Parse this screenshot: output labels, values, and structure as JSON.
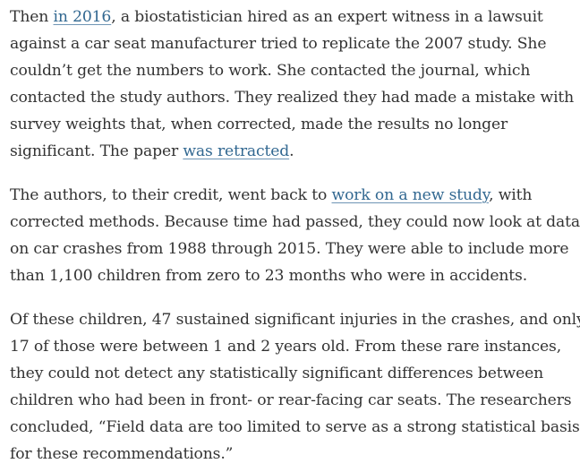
{
  "article": {
    "paragraphs": [
      {
        "lines": [
          {
            "pre": "Then ",
            "link": "in 2016",
            "post": ", a biostatistician hired as an expert witness in a lawsuit"
          },
          {
            "text": "against a car seat manufacturer tried to replicate the 2007 study. She"
          },
          {
            "text": "couldn’t get the numbers to work. She contacted the journal, which"
          },
          {
            "text": "contacted the study authors. They realized they had made a mistake with"
          },
          {
            "text": "survey weights that, when corrected, made the results no longer"
          },
          {
            "pre": "significant. The paper ",
            "link": "was retracted",
            "post": "."
          }
        ]
      },
      {
        "lines": [
          {
            "pre": "The authors, to their credit, went back to ",
            "link": "work on a new study",
            "post": ", with"
          },
          {
            "text": "corrected methods. Because time had passed, they could now look at data"
          },
          {
            "text": "on car crashes from 1988 through 2015. They were able to include more"
          },
          {
            "text": "than 1,100 children from zero to 23 months who were in accidents."
          }
        ]
      },
      {
        "lines": [
          {
            "text": "Of these children, 47 sustained significant injuries in the crashes, and only"
          },
          {
            "text": "17 of those were between 1 and 2 years old. From these rare instances,"
          },
          {
            "text": "they could not detect any statistically significant differences between"
          },
          {
            "text": "children who had been in front- or rear-facing car seats. The researchers"
          },
          {
            "text": "concluded, “Field data are too limited to serve as a strong statistical basis"
          },
          {
            "text": "for these recommendations.”"
          }
        ]
      }
    ]
  },
  "colors": {
    "text": "#333333",
    "link": "#326891",
    "background": "#ffffff"
  }
}
